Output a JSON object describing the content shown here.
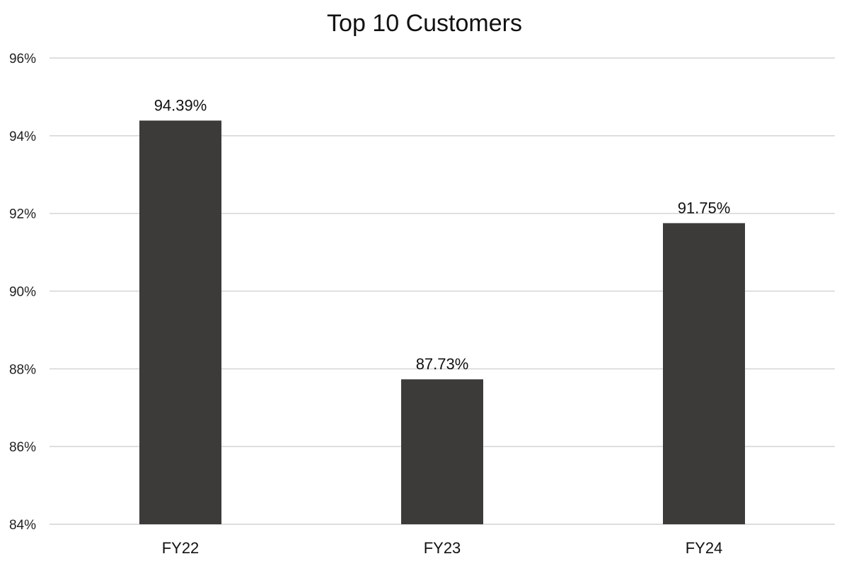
{
  "chart_data": {
    "type": "bar",
    "title": "Top 10 Customers",
    "categories": [
      "FY22",
      "FY23",
      "FY24"
    ],
    "values": [
      94.39,
      87.73,
      91.75
    ],
    "data_labels": [
      "94.39%",
      "87.73%",
      "91.75%"
    ],
    "ylim": [
      84,
      96
    ],
    "yticks": [
      84,
      86,
      88,
      90,
      92,
      94,
      96
    ],
    "ytick_labels": [
      "84%",
      "86%",
      "88%",
      "90%",
      "92%",
      "94%",
      "96%"
    ],
    "xlabel": "",
    "ylabel": "",
    "grid": true,
    "legend": "none",
    "bar_color": "#3d3a3a",
    "grid_color": "#d4d4d4"
  }
}
